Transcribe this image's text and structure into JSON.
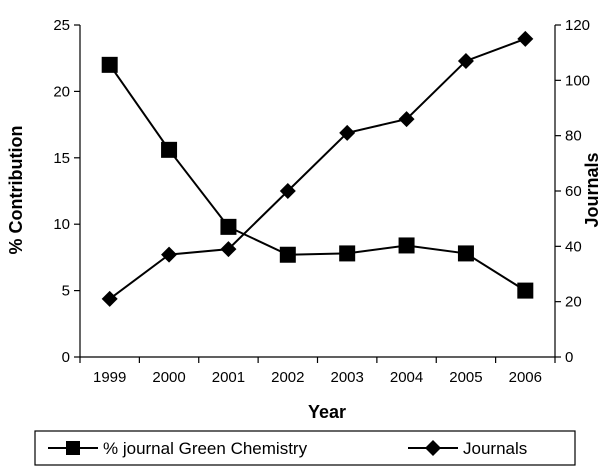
{
  "chart_data": {
    "type": "line",
    "title": "",
    "xlabel": "Year",
    "ylabel_left": "% Contribution",
    "ylabel_right": "Journals",
    "categories": [
      "1999",
      "2000",
      "2001",
      "2002",
      "2003",
      "2004",
      "2005",
      "2006"
    ],
    "ylim_left": [
      0,
      25
    ],
    "yticks_left": [
      0,
      5,
      10,
      15,
      20,
      25
    ],
    "ylim_right": [
      0,
      120
    ],
    "yticks_right": [
      0,
      20,
      40,
      60,
      80,
      100,
      120
    ],
    "grid": false,
    "legend_position": "bottom",
    "series": [
      {
        "name": "% journal Green Chemistry",
        "axis": "left",
        "marker": "square",
        "color": "#000000",
        "values": [
          22.0,
          15.6,
          9.8,
          7.7,
          7.8,
          8.4,
          7.8,
          5.0
        ]
      },
      {
        "name": "Journals",
        "axis": "right",
        "marker": "diamond",
        "color": "#000000",
        "values": [
          21,
          37,
          39,
          60,
          81,
          86,
          107,
          115
        ]
      }
    ]
  }
}
